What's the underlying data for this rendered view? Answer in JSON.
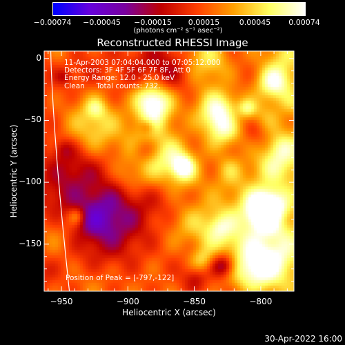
{
  "chart_data": {
    "type": "heatmap",
    "title": "Reconstructed RHESSI Image",
    "xlabel": "Heliocentric X (arcsec)",
    "ylabel": "Heliocentric Y (arcsec)",
    "xlim": [
      -963,
      -775
    ],
    "ylim": [
      -188,
      6
    ],
    "x_ticks": [
      -950,
      -900,
      -850,
      -800
    ],
    "x_tick_labels": [
      "−950",
      "−900",
      "−850",
      "−800"
    ],
    "y_ticks": [
      0,
      -50,
      -100,
      -150
    ],
    "y_tick_labels": [
      "0",
      "−50",
      "−100",
      "−150"
    ],
    "colorbar": {
      "min": -0.00074,
      "max": 0.00074,
      "ticks": [
        -0.00074,
        -0.00045,
        -0.00015,
        0.00015,
        0.00045,
        0.00074
      ],
      "tick_labels": [
        "−0.00074",
        "−0.00045",
        "−0.00015",
        "0.00015",
        "0.00045",
        "0.00074"
      ],
      "units_label": "(photons cm⁻² s⁻¹ asec⁻²)",
      "colors": [
        "#0000ff",
        "#6600dd",
        "#7a00a0",
        "#c00000",
        "#ff4000",
        "#ffa000",
        "#ffff60",
        "#ffffff"
      ]
    },
    "annotations": [
      "11-Apr-2003 07:04:04.000 to 07:05:12.000",
      "Detectors: 3F 4F 5F 6F 7F 8F, Att 0",
      "Energy Range: 12.0 - 25.0 keV",
      "Clean     Total counts: 732."
    ],
    "peak_label": "Position of Peak = [-797,-122]",
    "peak": [
      -797,
      -122
    ],
    "grid": false,
    "limb": "white curve near left edge"
  },
  "footer": {
    "timestamp": "30-Apr-2022 16:00"
  }
}
